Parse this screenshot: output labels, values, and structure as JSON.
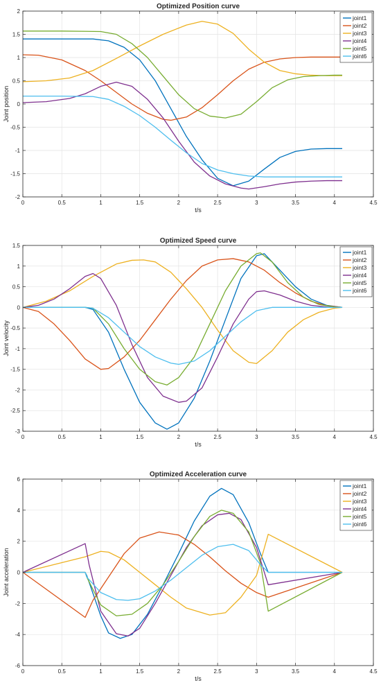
{
  "chart_data": [
    {
      "type": "line",
      "title": "Optimized Position curve",
      "xlabel": "t/s",
      "ylabel": "Joint position",
      "xlim": [
        0,
        4.5
      ],
      "ylim": [
        -2,
        2
      ],
      "xticks": [
        "0",
        "0.5",
        "1",
        "1.5",
        "2",
        "2.5",
        "3",
        "3.5",
        "4",
        "4.5"
      ],
      "yticks": [
        "-2",
        "-1.5",
        "-1",
        "-0.5",
        "0",
        "0.5",
        "1",
        "1.5",
        "2"
      ],
      "grid": true,
      "legend_position": "top-right",
      "series": [
        {
          "name": "joint1",
          "color": "#0072BD",
          "x": [
            0,
            0.9,
            1.1,
            1.3,
            1.5,
            1.7,
            1.9,
            2.1,
            2.3,
            2.5,
            2.7,
            2.9,
            3.1,
            3.3,
            3.5,
            3.7,
            3.9,
            4.1
          ],
          "y": [
            1.4,
            1.4,
            1.36,
            1.22,
            0.95,
            0.5,
            -0.1,
            -0.7,
            -1.2,
            -1.6,
            -1.76,
            -1.66,
            -1.4,
            -1.15,
            -1.02,
            -0.97,
            -0.96,
            -0.96
          ]
        },
        {
          "name": "joint2",
          "color": "#D95319",
          "x": [
            0,
            0.2,
            0.5,
            0.8,
            1.0,
            1.2,
            1.4,
            1.6,
            1.8,
            1.9,
            2.1,
            2.3,
            2.5,
            2.7,
            2.9,
            3.1,
            3.3,
            3.5,
            3.7,
            3.9,
            4.1
          ],
          "y": [
            1.06,
            1.05,
            0.95,
            0.72,
            0.5,
            0.25,
            0.0,
            -0.2,
            -0.33,
            -0.35,
            -0.28,
            -0.08,
            0.2,
            0.5,
            0.75,
            0.9,
            0.97,
            1.0,
            1.01,
            1.01,
            1.01
          ]
        },
        {
          "name": "joint3",
          "color": "#EDB120",
          "x": [
            0,
            0.3,
            0.6,
            0.9,
            1.2,
            1.5,
            1.8,
            2.1,
            2.3,
            2.5,
            2.7,
            2.9,
            3.1,
            3.3,
            3.5,
            3.7,
            3.9,
            4.1
          ],
          "y": [
            0.48,
            0.5,
            0.56,
            0.72,
            0.98,
            1.25,
            1.5,
            1.7,
            1.78,
            1.72,
            1.52,
            1.18,
            0.9,
            0.72,
            0.65,
            0.62,
            0.61,
            0.61
          ]
        },
        {
          "name": "joint4",
          "color": "#7E2F8E",
          "x": [
            0,
            0.3,
            0.6,
            0.8,
            1.0,
            1.2,
            1.4,
            1.6,
            1.8,
            2.0,
            2.2,
            2.4,
            2.6,
            2.8,
            2.9,
            3.1,
            3.3,
            3.5,
            3.7,
            3.9,
            4.1
          ],
          "y": [
            0.03,
            0.05,
            0.12,
            0.22,
            0.38,
            0.47,
            0.38,
            0.1,
            -0.3,
            -0.8,
            -1.25,
            -1.55,
            -1.72,
            -1.81,
            -1.83,
            -1.78,
            -1.72,
            -1.68,
            -1.66,
            -1.65,
            -1.65
          ]
        },
        {
          "name": "joint5",
          "color": "#77AC30",
          "x": [
            0,
            0.5,
            1.0,
            1.2,
            1.4,
            1.6,
            1.8,
            2.0,
            2.2,
            2.4,
            2.6,
            2.8,
            3.0,
            3.2,
            3.4,
            3.6,
            3.8,
            4.0,
            4.1
          ],
          "y": [
            1.57,
            1.57,
            1.56,
            1.5,
            1.3,
            1.0,
            0.6,
            0.2,
            -0.1,
            -0.26,
            -0.3,
            -0.22,
            0.05,
            0.35,
            0.52,
            0.59,
            0.61,
            0.62,
            0.62
          ]
        },
        {
          "name": "joint6",
          "color": "#4DBEEE",
          "x": [
            0,
            0.5,
            0.9,
            1.1,
            1.3,
            1.5,
            1.7,
            1.9,
            2.1,
            2.3,
            2.5,
            2.7,
            2.9,
            3.1,
            3.3,
            3.5,
            3.7,
            3.9,
            4.1
          ],
          "y": [
            0.17,
            0.17,
            0.16,
            0.1,
            -0.05,
            -0.25,
            -0.5,
            -0.78,
            -1.05,
            -1.28,
            -1.42,
            -1.5,
            -1.55,
            -1.57,
            -1.57,
            -1.57,
            -1.57,
            -1.57,
            -1.57
          ]
        }
      ]
    },
    {
      "type": "line",
      "title": "Optimized Speed curve",
      "xlabel": "t/s",
      "ylabel": "Joint velocity",
      "xlim": [
        0,
        4.5
      ],
      "ylim": [
        -3,
        1.5
      ],
      "xticks": [
        "0",
        "0.5",
        "1",
        "1.5",
        "2",
        "2.5",
        "3",
        "3.5",
        "4",
        "4.5"
      ],
      "yticks": [
        "-3",
        "-2.5",
        "-2",
        "-1.5",
        "-1",
        "-0.5",
        "0",
        "0.5",
        "1",
        "1.5"
      ],
      "grid": true,
      "legend_position": "top-right",
      "series": [
        {
          "name": "joint1",
          "color": "#0072BD",
          "x": [
            0,
            0.8,
            0.9,
            1.1,
            1.3,
            1.5,
            1.7,
            1.85,
            2.0,
            2.2,
            2.4,
            2.6,
            2.8,
            3.0,
            3.1,
            3.3,
            3.5,
            3.7,
            3.9,
            4.1
          ],
          "y": [
            0,
            0,
            -0.05,
            -0.6,
            -1.5,
            -2.3,
            -2.8,
            -2.95,
            -2.8,
            -2.2,
            -1.3,
            -0.3,
            0.7,
            1.25,
            1.3,
            0.9,
            0.5,
            0.2,
            0.05,
            0
          ]
        },
        {
          "name": "joint2",
          "color": "#D95319",
          "x": [
            0,
            0.2,
            0.4,
            0.6,
            0.8,
            1.0,
            1.1,
            1.3,
            1.5,
            1.7,
            1.9,
            2.1,
            2.3,
            2.5,
            2.7,
            2.9,
            3.1,
            3.3,
            3.5,
            3.7,
            3.9,
            4.1
          ],
          "y": [
            0,
            -0.1,
            -0.4,
            -0.8,
            -1.25,
            -1.5,
            -1.48,
            -1.2,
            -0.8,
            -0.3,
            0.2,
            0.65,
            1.0,
            1.15,
            1.18,
            1.1,
            0.9,
            0.6,
            0.35,
            0.15,
            0.04,
            0
          ]
        },
        {
          "name": "joint3",
          "color": "#EDB120",
          "x": [
            0,
            0.3,
            0.6,
            0.9,
            1.2,
            1.4,
            1.55,
            1.7,
            1.9,
            2.1,
            2.3,
            2.5,
            2.7,
            2.9,
            3.0,
            3.2,
            3.4,
            3.6,
            3.8,
            4.0,
            4.1
          ],
          "y": [
            0,
            0.15,
            0.4,
            0.75,
            1.05,
            1.14,
            1.15,
            1.1,
            0.85,
            0.45,
            0.0,
            -0.55,
            -1.05,
            -1.33,
            -1.36,
            -1.05,
            -0.6,
            -0.3,
            -0.12,
            -0.02,
            0
          ]
        },
        {
          "name": "joint4",
          "color": "#7E2F8E",
          "x": [
            0,
            0.2,
            0.4,
            0.6,
            0.8,
            0.9,
            1.0,
            1.2,
            1.4,
            1.6,
            1.8,
            2.0,
            2.1,
            2.3,
            2.5,
            2.7,
            2.9,
            3.0,
            3.1,
            3.3,
            3.5,
            3.7,
            3.9,
            4.1
          ],
          "y": [
            0,
            0.05,
            0.2,
            0.45,
            0.75,
            0.82,
            0.7,
            0.05,
            -0.9,
            -1.7,
            -2.15,
            -2.3,
            -2.27,
            -1.95,
            -1.2,
            -0.4,
            0.2,
            0.38,
            0.4,
            0.3,
            0.15,
            0.05,
            0.01,
            0
          ]
        },
        {
          "name": "joint5",
          "color": "#77AC30",
          "x": [
            0,
            0.8,
            0.9,
            1.1,
            1.3,
            1.5,
            1.7,
            1.85,
            2.0,
            2.2,
            2.4,
            2.6,
            2.8,
            3.0,
            3.05,
            3.2,
            3.4,
            3.6,
            3.8,
            4.0,
            4.1
          ],
          "y": [
            0,
            0,
            -0.02,
            -0.4,
            -1.0,
            -1.5,
            -1.8,
            -1.88,
            -1.7,
            -1.2,
            -0.4,
            0.4,
            1.0,
            1.3,
            1.32,
            1.1,
            0.6,
            0.25,
            0.07,
            0.01,
            0
          ]
        },
        {
          "name": "joint6",
          "color": "#4DBEEE",
          "x": [
            0,
            0.8,
            0.9,
            1.1,
            1.3,
            1.5,
            1.7,
            1.9,
            2.0,
            2.2,
            2.4,
            2.6,
            2.8,
            3.0,
            3.2,
            3.4,
            3.6,
            3.8,
            4.0,
            4.1
          ],
          "y": [
            0,
            0,
            -0.02,
            -0.25,
            -0.6,
            -0.95,
            -1.2,
            -1.35,
            -1.38,
            -1.3,
            -1.05,
            -0.7,
            -0.35,
            -0.08,
            0,
            0,
            0,
            0,
            0,
            0
          ]
        }
      ]
    },
    {
      "type": "line",
      "title": "Optimized Acceleration curve",
      "xlabel": "t/s",
      "ylabel": "Joint acceleration",
      "xlim": [
        0,
        4.5
      ],
      "ylim": [
        -6,
        6
      ],
      "xticks": [
        "0",
        "0.5",
        "1",
        "1.5",
        "2",
        "2.5",
        "3",
        "3.5",
        "4",
        "4.5"
      ],
      "yticks": [
        "-6",
        "-4",
        "-2",
        "0",
        "2",
        "4",
        "6"
      ],
      "grid": true,
      "legend_position": "top-right",
      "series": [
        {
          "name": "joint1",
          "color": "#0072BD",
          "x": [
            0,
            0.8,
            0.82,
            1.0,
            1.1,
            1.25,
            1.4,
            1.6,
            1.8,
            2.0,
            2.2,
            2.4,
            2.55,
            2.7,
            2.9,
            3.05,
            3.15,
            3.5,
            4.1
          ],
          "y": [
            0,
            0,
            -0.2,
            -2.8,
            -3.9,
            -4.25,
            -4.0,
            -2.7,
            -0.8,
            1.2,
            3.3,
            4.9,
            5.4,
            5.0,
            3.2,
            1.2,
            0,
            0,
            0
          ]
        },
        {
          "name": "joint2",
          "color": "#D95319",
          "x": [
            0,
            0.8,
            0.9,
            1.1,
            1.3,
            1.5,
            1.75,
            2.0,
            2.2,
            2.4,
            2.6,
            2.8,
            3.0,
            3.15,
            4.1
          ],
          "y": [
            0,
            -2.9,
            -1.8,
            -0.3,
            1.2,
            2.2,
            2.6,
            2.4,
            1.8,
            1.0,
            0.1,
            -0.7,
            -1.3,
            -1.6,
            0
          ]
        },
        {
          "name": "joint3",
          "color": "#EDB120",
          "x": [
            0,
            0.8,
            1.0,
            1.1,
            1.3,
            1.5,
            1.7,
            1.9,
            2.1,
            2.4,
            2.6,
            2.8,
            3.0,
            3.15,
            4.1
          ],
          "y": [
            0,
            1.0,
            1.35,
            1.3,
            0.8,
            0.0,
            -0.8,
            -1.6,
            -2.3,
            -2.75,
            -2.6,
            -1.6,
            -0.2,
            2.45,
            0
          ]
        },
        {
          "name": "joint4",
          "color": "#7E2F8E",
          "x": [
            0,
            0.8,
            0.85,
            1.0,
            1.2,
            1.35,
            1.5,
            1.7,
            1.9,
            2.1,
            2.3,
            2.5,
            2.65,
            2.8,
            3.0,
            3.15,
            4.1
          ],
          "y": [
            0,
            1.85,
            0.5,
            -2.5,
            -3.95,
            -4.1,
            -3.6,
            -2.0,
            -0.2,
            1.6,
            3.0,
            3.7,
            3.8,
            3.4,
            1.6,
            -0.8,
            0
          ]
        },
        {
          "name": "joint5",
          "color": "#77AC30",
          "x": [
            0,
            0.8,
            0.82,
            1.0,
            1.2,
            1.4,
            1.6,
            1.8,
            2.0,
            2.2,
            2.4,
            2.55,
            2.7,
            2.9,
            3.05,
            3.15,
            4.1
          ],
          "y": [
            0,
            0,
            -0.3,
            -2.1,
            -2.8,
            -2.7,
            -2.0,
            -0.8,
            0.7,
            2.3,
            3.6,
            4.0,
            3.8,
            2.6,
            0.6,
            -2.5,
            0
          ]
        },
        {
          "name": "joint6",
          "color": "#4DBEEE",
          "x": [
            0,
            0.8,
            0.82,
            1.0,
            1.2,
            1.35,
            1.5,
            1.7,
            1.9,
            2.1,
            2.3,
            2.5,
            2.7,
            2.9,
            3.05,
            3.15,
            4.1
          ],
          "y": [
            0,
            0,
            -0.3,
            -1.3,
            -1.75,
            -1.8,
            -1.7,
            -1.2,
            -0.5,
            0.3,
            1.1,
            1.65,
            1.8,
            1.4,
            0.5,
            0,
            0
          ]
        }
      ]
    }
  ]
}
